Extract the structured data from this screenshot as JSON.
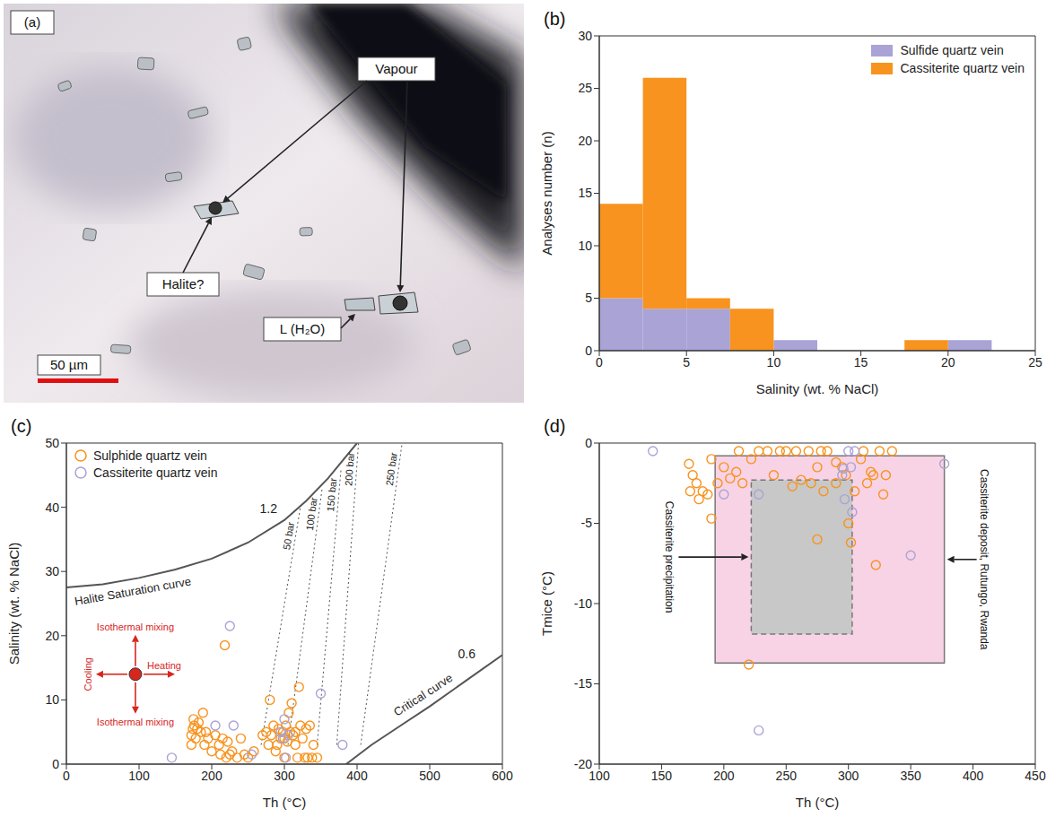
{
  "chart_data": [
    {
      "type": "image",
      "label": "(a)",
      "annotations": [
        "Vapour",
        "Halite?",
        "L (H₂O)"
      ],
      "scale_bar": "50 µm"
    },
    {
      "type": "histogram",
      "label": "(b)",
      "xlabel": "Salinity (wt. % NaCl)",
      "ylabel": "Analyses number (n)",
      "bins": [
        0,
        2.5,
        5,
        7.5,
        10,
        12.5,
        15,
        17.5,
        20,
        22.5,
        25
      ],
      "stacked": true,
      "legend": "top-right",
      "xlim": [
        0,
        25
      ],
      "xticks": [
        0,
        5,
        10,
        15,
        20,
        25
      ],
      "ylim": [
        0,
        30
      ],
      "yticks": [
        0,
        5,
        10,
        15,
        20,
        25,
        30
      ],
      "series": [
        {
          "name": "Sulfide quartz vein",
          "color": "#a9a3d6",
          "values": [
            5,
            4,
            4,
            0,
            1,
            0,
            0,
            0,
            1,
            0
          ]
        },
        {
          "name": "Cassiterite quartz vein",
          "color": "#f7931e",
          "values": [
            9,
            22,
            1,
            4,
            0,
            0,
            0,
            1,
            0,
            0
          ]
        }
      ]
    },
    {
      "type": "scatter",
      "label": "(c)",
      "xlabel": "Th (°C)",
      "ylabel": "Salinity (wt. % NaCl)",
      "legend": "top-left",
      "xlim": [
        0,
        600
      ],
      "xticks": [
        0,
        100,
        200,
        300,
        400,
        500,
        600
      ],
      "ylim": [
        0,
        50
      ],
      "yticks": [
        0,
        10,
        20,
        30,
        40,
        50
      ],
      "series": [
        {
          "name": "Sulphide quartz vein",
          "color": "#f7931e",
          "marker": "circle_open",
          "x": [
            172,
            172,
            174,
            175,
            176,
            178,
            180,
            182,
            185,
            188,
            190,
            192,
            195,
            200,
            205,
            210,
            212,
            215,
            218,
            220,
            222,
            225,
            228,
            235,
            240,
            245,
            250,
            258,
            270,
            275,
            278,
            280,
            282,
            285,
            288,
            290,
            292,
            295,
            298,
            300,
            302,
            304,
            306,
            308,
            310,
            312,
            315,
            318,
            320,
            322,
            325,
            328,
            330,
            332,
            335,
            338,
            340,
            345,
            315,
            300
          ],
          "y": [
            3,
            4.5,
            5.5,
            7,
            6,
            4,
            5.5,
            6.5,
            5,
            8,
            3,
            5,
            4,
            2,
            4.5,
            3,
            1.5,
            4,
            18.5,
            1,
            3.5,
            1.5,
            2,
            1,
            4,
            1.5,
            1,
            2,
            4.5,
            5,
            3,
            10,
            4.5,
            6,
            2,
            3,
            5.5,
            4,
            5,
            4,
            6,
            3.5,
            8,
            5,
            9.5,
            4.5,
            5,
            1,
            12,
            6,
            4,
            1,
            5.5,
            1,
            6,
            1,
            3,
            1,
            3,
            1
          ]
        },
        {
          "name": "Cassiterite quartz vein",
          "color": "#a9a3d6",
          "marker": "circle_open",
          "x": [
            145,
            205,
            225,
            230,
            255,
            295,
            298,
            300,
            302,
            305,
            350,
            380
          ],
          "y": [
            1,
            6,
            21.5,
            6,
            1.5,
            5,
            4,
            7,
            1,
            4.5,
            11,
            3
          ]
        }
      ],
      "curves": [
        {
          "name": "Halite Saturation curve",
          "value": 1.2,
          "color": "#555555",
          "line_style": "solid",
          "x": [
            0,
            50,
            100,
            150,
            200,
            250,
            300,
            330,
            360,
            400
          ],
          "y": [
            27.5,
            28,
            29,
            30.3,
            32,
            34.5,
            38,
            41,
            44.5,
            50
          ]
        },
        {
          "name": "Critical curve",
          "value": 0.6,
          "color": "#555555",
          "line_style": "solid",
          "x": [
            385,
            420,
            460,
            500,
            550,
            600
          ],
          "y": [
            0,
            3,
            6,
            9,
            13,
            17
          ]
        }
      ],
      "isobars": [
        {
          "name": "50 bar",
          "color": "#555555",
          "line_style": "dotted",
          "x": [
            268,
            322
          ],
          "y": [
            3,
            40
          ]
        },
        {
          "name": "100 bar",
          "color": "#555555",
          "line_style": "dotted",
          "x": [
            305,
            352
          ],
          "y": [
            3,
            43
          ]
        },
        {
          "name": "150 bar",
          "color": "#555555",
          "line_style": "dotted",
          "x": [
            345,
            378
          ],
          "y": [
            3,
            46
          ]
        },
        {
          "name": "200 bar",
          "color": "#555555",
          "line_style": "dotted",
          "x": [
            372,
            402
          ],
          "y": [
            3,
            50
          ]
        },
        {
          "name": "250 bar",
          "color": "#555555",
          "line_style": "dotted",
          "x": [
            405,
            462
          ],
          "y": [
            3,
            50
          ]
        }
      ],
      "process_arrows": {
        "x": 95,
        "y": 14,
        "color": "#d7261e",
        "up": "Isothermal mixing",
        "down": "Isothermal mixing",
        "left": "Cooling",
        "right": "Heating"
      }
    },
    {
      "type": "scatter",
      "label": "(d)",
      "xlabel": "Th (°C)",
      "ylabel": "Tmice (°C)",
      "xlim": [
        100,
        450
      ],
      "xticks": [
        100,
        150,
        200,
        250,
        300,
        350,
        400,
        450
      ],
      "ylim": [
        -20,
        0
      ],
      "yticks": [
        -20,
        -15,
        -10,
        -5,
        0
      ],
      "series": [
        {
          "color": "#f7931e",
          "marker": "circle_open",
          "x": [
            172,
            173,
            175,
            178,
            180,
            183,
            187,
            190,
            190,
            195,
            200,
            205,
            210,
            212,
            215,
            220,
            222,
            228,
            235,
            240,
            245,
            250,
            255,
            258,
            262,
            268,
            270,
            275,
            275,
            278,
            280,
            283,
            290,
            290,
            295,
            298,
            300,
            302,
            305,
            310,
            312,
            315,
            318,
            320,
            322,
            325,
            328,
            330,
            335
          ],
          "y": [
            -1.3,
            -3,
            -2,
            -2.5,
            -3.5,
            -3,
            -3.2,
            -1,
            -4.7,
            -2.5,
            -1.5,
            -2.2,
            -1.8,
            -0.5,
            -2.5,
            -13.8,
            -1,
            -0.5,
            -0.5,
            -2,
            -0.5,
            -0.5,
            -2.7,
            -0.5,
            -2.3,
            -0.5,
            -2.5,
            -1.5,
            -6,
            -0.5,
            -3,
            -0.5,
            -2.5,
            -1.2,
            -1.5,
            -2,
            -5,
            -6.2,
            -3,
            -1,
            -0.5,
            -2.5,
            -1.8,
            -2,
            -7.6,
            -0.5,
            -3.2,
            -2,
            -0.5
          ]
        },
        {
          "color": "#a9a3d6",
          "marker": "circle_open",
          "x": [
            143,
            200,
            228,
            228,
            295,
            296,
            297,
            300,
            302,
            303,
            305,
            350,
            377
          ],
          "y": [
            -0.5,
            -3.2,
            -3.2,
            -17.9,
            -2,
            -1.6,
            -3.5,
            -0.5,
            -1.5,
            -4.3,
            -0.5,
            -7,
            -1.3
          ]
        }
      ],
      "regions": [
        {
          "name": "Cassiterite deposit, Rutungo, Rwanda",
          "color": "#f8d3e6",
          "line_style": "solid",
          "x": [
            193,
            377
          ],
          "y": [
            -13.7,
            -0.8
          ]
        },
        {
          "name": "Cassiterite precipitation",
          "color": "#c8c8c8",
          "line_style": "dashed",
          "x": [
            222,
            303
          ],
          "y": [
            -11.9,
            -2.3
          ]
        }
      ]
    }
  ]
}
